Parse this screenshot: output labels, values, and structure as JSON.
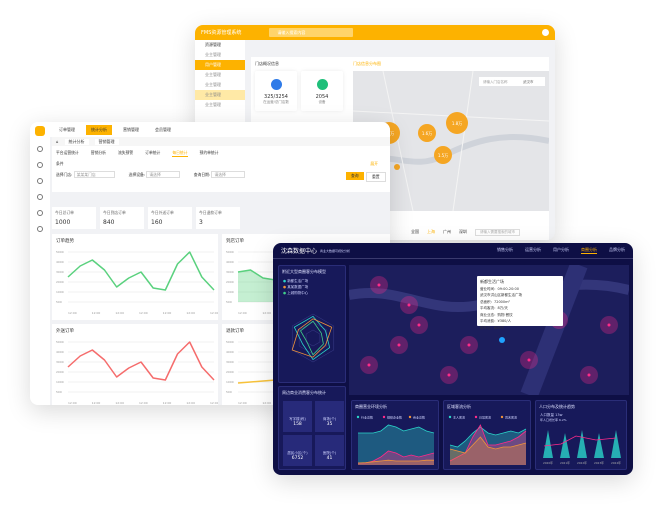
{
  "resource_system": {
    "title": "FMS资源管理系统",
    "search_placeholder": "请输入搜索内容",
    "sidebar": {
      "group": "资源管理",
      "items": [
        "业主管理",
        "用户管理",
        "业主管理",
        "业主管理",
        "业主管理",
        "业主管理"
      ],
      "active": 1
    },
    "overview_title": "门店概况信息",
    "map_tab": "门店信息分布图",
    "map_search_placeholder": "请输入门店名称",
    "city": "武汉市",
    "cards": [
      {
        "value": "325/3254",
        "label": "在运营/总门店数",
        "color": "#2f7be8"
      },
      {
        "value": "2054",
        "label": "设备",
        "color": "#1fbf7a"
      }
    ],
    "clusters": [
      "1.9万",
      "1.6万",
      "1.8万",
      "1.5万",
      "1.6万"
    ],
    "region_tabs": [
      "全国",
      "上海",
      "广州",
      "深圳"
    ],
    "region_placeholder": "请输入需要搜索的城市",
    "metrics": [
      {
        "label": "在线门店",
        "value": "35%"
      },
      {
        "label": "营业门店",
        "value": "35%"
      },
      {
        "label": "设备在线",
        "value": "35%"
      },
      {
        "label": "同比率",
        "value": "69%"
      },
      {
        "label": "",
        "value": "76%"
      }
    ],
    "tooltip": "总订单：180"
  },
  "order_system": {
    "nav": [
      "订单管理",
      "统计分析",
      "营销管理",
      "会员管理"
    ],
    "nav_active": 1,
    "tabs": [
      "统计分析",
      "营销管理"
    ],
    "subtabs": [
      "平台运营统计",
      "营销分析",
      "流失预警",
      "订单统计",
      "每日统计",
      "预约单统计"
    ],
    "subtab_active": 4,
    "filter_label": "条件",
    "expand": "展开",
    "filters": [
      {
        "label": "选择门店:",
        "value": "某某某门店"
      },
      {
        "label": "选择设备:",
        "value": "请选择"
      },
      {
        "label": "查询日期:",
        "value": "请选择"
      }
    ],
    "query": "查询",
    "reset": "重置",
    "stats": [
      {
        "label": "今日总订单",
        "value": "1000"
      },
      {
        "label": "今日到店订单",
        "value": "840"
      },
      {
        "label": "今日外送订单",
        "value": "160"
      },
      {
        "label": "今日退款订单",
        "value": "3"
      }
    ],
    "panels": [
      "订单趋势",
      "到店订单",
      "外送订单",
      "退款订单"
    ],
    "y_ticks": [
      "5000",
      "4000",
      "3000",
      "2000",
      "1000",
      "500"
    ],
    "x_ticks": [
      "12:00",
      "12:00",
      "12:00",
      "12:00",
      "12:00",
      "12:00",
      "12:00"
    ],
    "tooltip": {
      "count": "订单数：1000",
      "amount": "订单金额：￥1000.00"
    },
    "colors": {
      "accent": "#fdb200",
      "green": "#5ad17e",
      "red": "#f56c6c",
      "yellow": "#f7c23a"
    }
  },
  "data_center": {
    "title": "沈森数据中心",
    "subtitle": "商业大数据可视化分析",
    "nav": [
      "销售分析",
      "运营分析",
      "用户分析",
      "商圈分析",
      "品牌分析"
    ],
    "nav_active": 3,
    "radar_panel": {
      "title": "附近大型商圈客分布模型",
      "legend": [
        "新都生活广场",
        "某某数据广场",
        "上城购物中心"
      ],
      "axis_labels": [
        "人口密度",
        "消费能力",
        "交通便利",
        "客流量",
        "收入水平",
        "商业面积"
      ]
    },
    "tiles_panel": {
      "title": "周边商业消费客分布统计",
      "tiles": [
        {
          "label": "写字楼(栋)",
          "value": "158"
        },
        {
          "label": "商场(个)",
          "value": "35"
        },
        {
          "label": "居民小区(个)",
          "value": "6752"
        },
        {
          "label": "医院(个)",
          "value": "41"
        }
      ]
    },
    "popup": {
      "name": "新都生活广场",
      "hours": "营业时间：09:00-20:00",
      "address": "武汉市洪山区新都生活广场",
      "lines": [
        "总面积：72000m²",
        "平均客流：8万/天",
        "商业业态：购物 餐饮",
        "平均消费：¥380/人",
        "停车位：800个"
      ]
    },
    "charts": [
      {
        "title": "商圈营业环境分析",
        "legend": [
          "行业总数",
          "规模企业数",
          "商业总数"
        ]
      },
      {
        "title": "区域客流分析",
        "legend": [
          "主人客流",
          "日常客流",
          "周末客流"
        ]
      },
      {
        "title": "人口分布及统计趋势",
        "people": "人口数量 13w",
        "ratio": "年人口增长率 6.2%",
        "x": [
          "2020年",
          "2021年",
          "2022年",
          "2023年",
          "2024年"
        ]
      }
    ],
    "colors": {
      "bg": "#0e0f45",
      "panel": "#17195a",
      "pink": "#ff2a8a",
      "teal": "#2ad4c9",
      "orange": "#f0933a"
    }
  }
}
